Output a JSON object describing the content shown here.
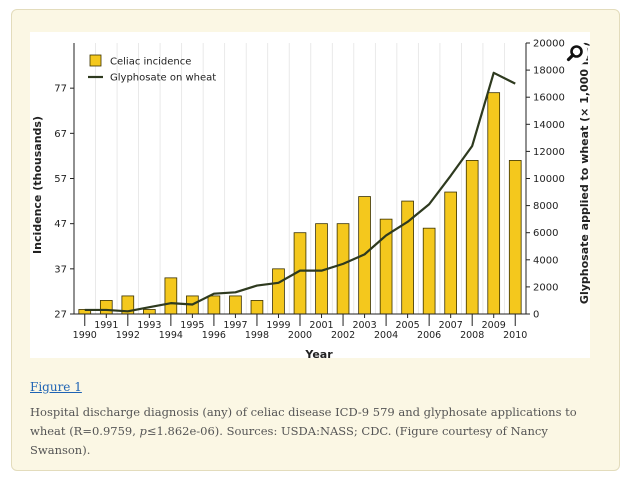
{
  "chart_data": {
    "type": "bar+line",
    "x": [
      1990,
      1991,
      1992,
      1993,
      1994,
      1995,
      1996,
      1997,
      1998,
      1999,
      2000,
      2001,
      2002,
      2003,
      2004,
      2005,
      2006,
      2007,
      2008,
      2009,
      2010
    ],
    "xtick_labels_odd": [
      "1991",
      "1993",
      "1995",
      "1997",
      "1999",
      "2001",
      "2003",
      "2005",
      "2007",
      "2009"
    ],
    "xtick_labels_even": [
      "1990",
      "1992",
      "1994",
      "1996",
      "1998",
      "2000",
      "2002",
      "2004",
      "2006",
      "2008",
      "2010"
    ],
    "series": [
      {
        "name": "Celiac incidence",
        "kind": "bar",
        "axis": "left",
        "color": "#f4c81d",
        "values": [
          28,
          30,
          31,
          28,
          35,
          31,
          31,
          31,
          30,
          37,
          45,
          47,
          47,
          53,
          48,
          52,
          46,
          54,
          61,
          76,
          61
        ]
      },
      {
        "name": "Glyphosate on wheat",
        "kind": "line",
        "axis": "right",
        "color": "#2e3a1f",
        "values": [
          300,
          300,
          200,
          500,
          800,
          700,
          1500,
          1600,
          2100,
          2300,
          3200,
          3200,
          3700,
          4400,
          5800,
          6800,
          8100,
          10200,
          12400,
          17800,
          17000
        ]
      }
    ],
    "xlabel": "Year",
    "ylabel_left": "Incidence (thousands)",
    "ylabel_right": "Glyphosate applied to wheat (× 1,000 lbs)",
    "yticks_left": [
      27,
      37,
      47,
      57,
      67,
      77
    ],
    "yticks_right": [
      0,
      2000,
      4000,
      6000,
      8000,
      10000,
      12000,
      14000,
      16000,
      18000,
      20000
    ],
    "ylim_left": [
      27,
      87
    ],
    "ylim_right": [
      0,
      20000
    ],
    "legend_placement": "top-left",
    "grid": "vertical"
  },
  "zoom": {
    "icon": "magnifier-icon"
  },
  "figure_link": "Figure 1",
  "caption": {
    "part1": "Hospital discharge diagnosis (any) of celiac disease ICD-9 579 and glyphosate applications to wheat (R=0.9759, ",
    "p_symbol": "p",
    "part2": "≤1.862e-06). Sources: USDA:NASS; CDC. (Figure courtesy of Nancy Swanson)."
  }
}
